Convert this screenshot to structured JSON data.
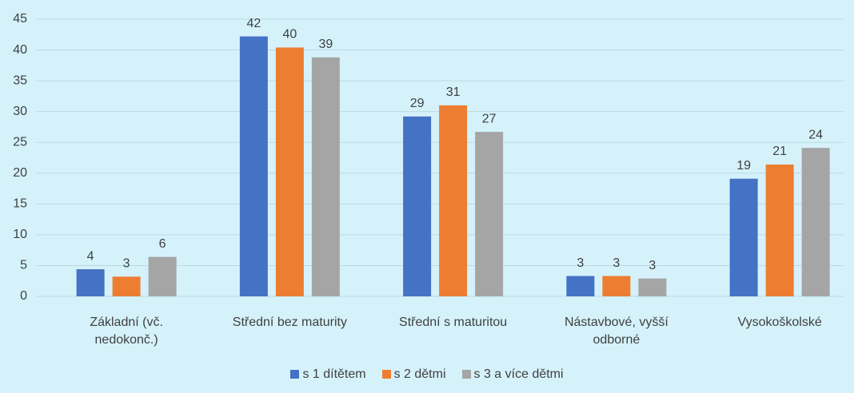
{
  "chart_data": {
    "type": "bar",
    "categories": [
      "Základní (vč. nedokonč.)",
      "Střední bez maturity",
      "Střední s maturitou",
      "Nástavbové, vyšší odborné",
      "Vysokoškolské"
    ],
    "series": [
      {
        "name": "s 1 dítětem",
        "color": "#4472c4",
        "values": [
          4.4,
          42.2,
          29.2,
          3.3,
          19.1
        ],
        "value_labels": [
          "4",
          "42",
          "29",
          "3",
          "19"
        ]
      },
      {
        "name": "s 2 dětmi",
        "color": "#ed7d31",
        "values": [
          3.2,
          40.4,
          31.0,
          3.3,
          21.4
        ],
        "value_labels": [
          "3",
          "40",
          "31",
          "3",
          "21"
        ]
      },
      {
        "name": "s 3 a více dětmi",
        "color": "#a5a5a5",
        "values": [
          6.4,
          38.8,
          26.7,
          2.9,
          24.1
        ],
        "value_labels": [
          "6",
          "39",
          "27",
          "3",
          "24"
        ]
      }
    ],
    "ylim": [
      0,
      45
    ],
    "yticks": [
      0,
      5,
      10,
      15,
      20,
      25,
      30,
      35,
      40,
      45
    ],
    "grid": true,
    "legend": "bottom"
  }
}
